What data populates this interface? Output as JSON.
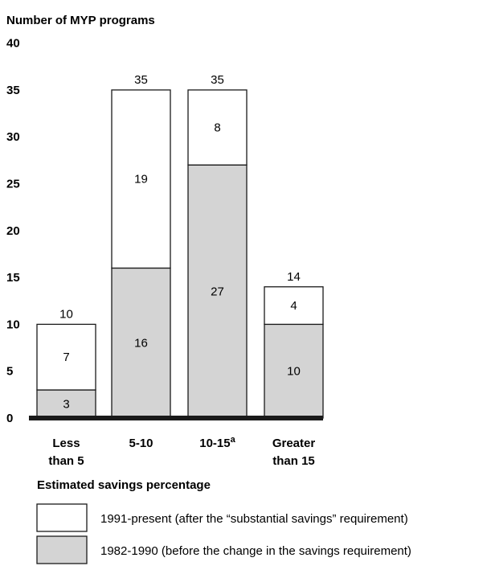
{
  "chart_data": {
    "type": "bar",
    "stacked": true,
    "ylabel": "Number of MYP programs",
    "xlabel": "Estimated savings percentage",
    "ylim": [
      0,
      40
    ],
    "yticks": [
      "0",
      "5",
      "10",
      "15",
      "20",
      "25",
      "30",
      "35",
      "40"
    ],
    "grid": false,
    "legend_position": "bottom",
    "categories": [
      {
        "line1": "Less",
        "line2": "than 5",
        "sup": ""
      },
      {
        "line1": "5-10",
        "line2": "",
        "sup": ""
      },
      {
        "line1": "10-15",
        "line2": "",
        "sup": "a"
      },
      {
        "line1": "Greater",
        "line2": "than 15",
        "sup": ""
      }
    ],
    "series": [
      {
        "name": "1982-1990 (before the change in the savings requirement)",
        "values": [
          3,
          16,
          27,
          10
        ],
        "color": "#d4d4d4"
      },
      {
        "name": "1991-present (after the “substantial savings” requirement)",
        "values": [
          7,
          19,
          8,
          4
        ],
        "color": "#ffffff"
      }
    ],
    "totals": [
      10,
      35,
      35,
      14
    ]
  }
}
